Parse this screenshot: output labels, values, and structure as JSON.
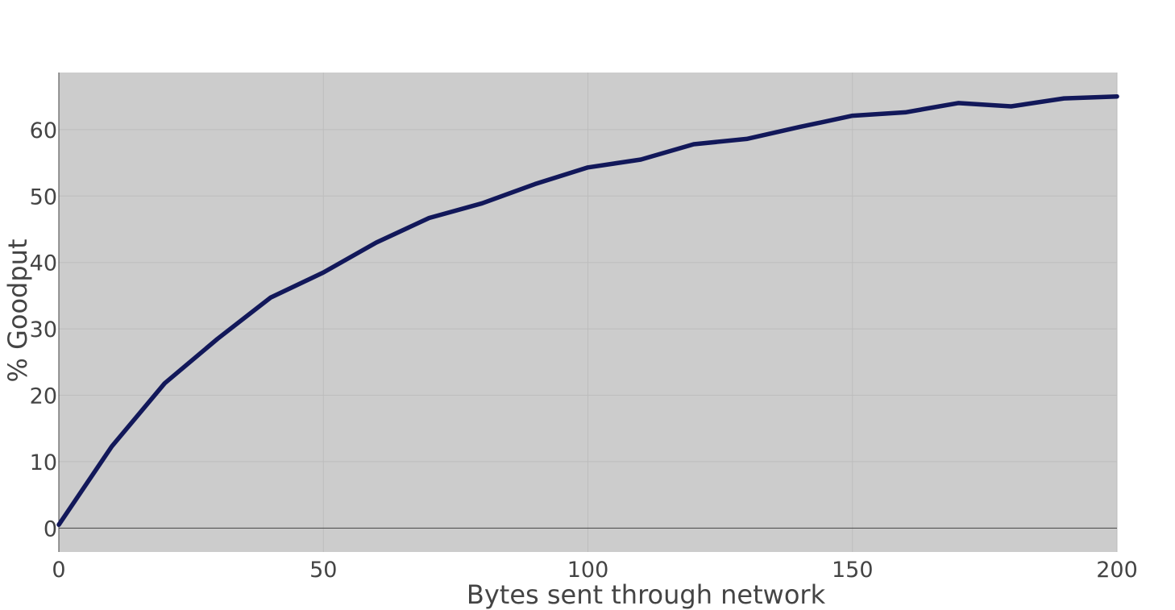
{
  "chart_data": {
    "type": "line",
    "title": "",
    "xlabel": "Bytes sent through network",
    "ylabel": "% Goodput",
    "xlim": [
      0,
      200
    ],
    "ylim": [
      -3.6,
      68.6
    ],
    "x_ticks": [
      0,
      50,
      100,
      150,
      200
    ],
    "y_ticks": [
      0,
      10,
      20,
      30,
      40,
      50,
      60
    ],
    "grid": true,
    "legend": "none",
    "colors": {
      "background": "#cccccc",
      "grid": "#bdbdbd",
      "line": "#12185a",
      "zero_line": "#444444",
      "text": "#444444"
    },
    "series": [
      {
        "x": [
          0,
          10,
          20,
          30,
          40,
          50,
          60,
          70,
          80,
          90,
          100,
          110,
          120,
          130,
          140,
          150,
          160,
          170,
          180,
          190,
          200
        ],
        "y": [
          0.5,
          12.3,
          21.8,
          28.5,
          34.7,
          38.5,
          43.0,
          46.7,
          48.9,
          51.8,
          54.3,
          55.5,
          57.8,
          58.6,
          60.4,
          62.1,
          62.6,
          64.0,
          63.5,
          64.7,
          65.0
        ]
      }
    ]
  }
}
